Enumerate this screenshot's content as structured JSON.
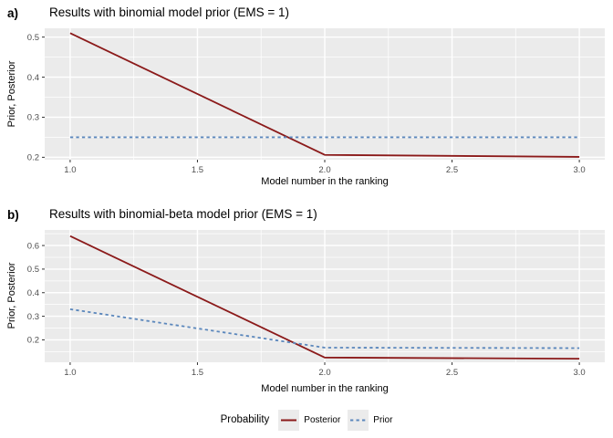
{
  "page": {
    "background": "#FFFFFF"
  },
  "legend": {
    "title": "Probability",
    "entries": [
      {
        "label": "Posterior",
        "line_style": "solid",
        "color": "#8B1A1A"
      },
      {
        "label": "Prior",
        "line_style": "dashed",
        "color": "#5B87BC"
      }
    ]
  },
  "chart_data": [
    {
      "type": "line",
      "panel_label": "a)",
      "title": "Results with binomial model prior (EMS = 1)",
      "xlabel": "Model number in the ranking",
      "ylabel": "Prior, Posterior",
      "x": [
        1,
        2,
        3
      ],
      "series": [
        {
          "name": "Posterior",
          "values": [
            0.51,
            0.206,
            0.201
          ],
          "color": "#8B1A1A",
          "line_style": "solid"
        },
        {
          "name": "Prior",
          "values": [
            0.25,
            0.25,
            0.25
          ],
          "color": "#5B87BC",
          "line_style": "dashed"
        }
      ],
      "xlim": [
        0.9,
        3.1
      ],
      "ylim": [
        0.194,
        0.522
      ],
      "x_ticks": [
        1.0,
        1.5,
        2.0,
        2.5,
        3.0
      ],
      "x_tick_labels": [
        "1.0",
        "1.5",
        "2.0",
        "2.5",
        "3.0"
      ],
      "y_ticks": [
        0.2,
        0.3,
        0.4,
        0.5
      ],
      "y_tick_labels": [
        "0.2",
        "0.3",
        "0.4",
        "0.5"
      ],
      "x_minor": [
        1.25,
        1.75,
        2.25,
        2.75
      ],
      "y_minor": [
        0.25,
        0.35,
        0.45
      ],
      "panel_bg": "#EBEBEB",
      "grid_color": "#FFFFFF",
      "legend_position": "bottom",
      "grid": "on"
    },
    {
      "type": "line",
      "panel_label": "b)",
      "title": "Results with binomial-beta model prior (EMS = 1)",
      "xlabel": "Model number in the ranking",
      "ylabel": "Prior, Posterior",
      "x": [
        1,
        2,
        3
      ],
      "series": [
        {
          "name": "Posterior",
          "values": [
            0.64,
            0.125,
            0.12
          ],
          "color": "#8B1A1A",
          "line_style": "solid"
        },
        {
          "name": "Prior",
          "values": [
            0.33,
            0.167,
            0.165
          ],
          "color": "#5B87BC",
          "line_style": "dashed"
        }
      ],
      "xlim": [
        0.9,
        3.1
      ],
      "ylim": [
        0.105,
        0.666
      ],
      "x_ticks": [
        1.0,
        1.5,
        2.0,
        2.5,
        3.0
      ],
      "x_tick_labels": [
        "1.0",
        "1.5",
        "2.0",
        "2.5",
        "3.0"
      ],
      "y_ticks": [
        0.2,
        0.3,
        0.4,
        0.5,
        0.6
      ],
      "y_tick_labels": [
        "0.2",
        "0.3",
        "0.4",
        "0.5",
        "0.6"
      ],
      "x_minor": [
        1.25,
        1.75,
        2.25,
        2.75
      ],
      "y_minor": [
        0.15,
        0.25,
        0.35,
        0.45,
        0.55,
        0.65
      ],
      "panel_bg": "#EBEBEB",
      "grid_color": "#FFFFFF",
      "legend_position": "bottom",
      "grid": "on"
    }
  ]
}
